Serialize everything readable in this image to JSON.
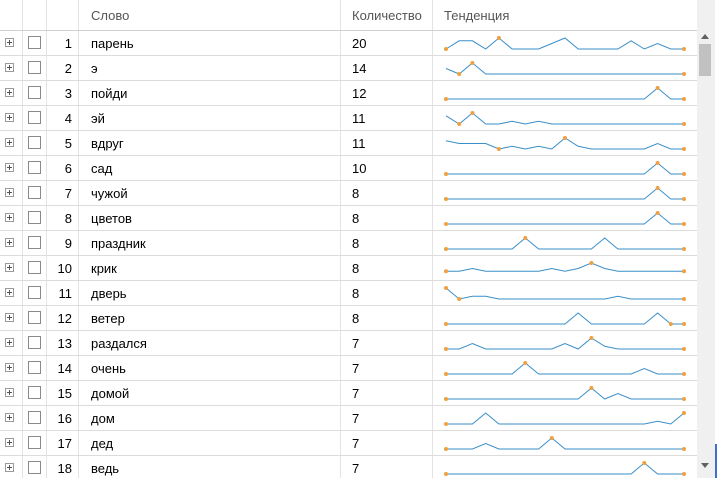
{
  "columns": {
    "word": "Слово",
    "count": "Количество",
    "trend": "Тенденция"
  },
  "colors": {
    "line": "#3a8fc8",
    "marker": "#f0a040",
    "grid_border": "#dcdcdc"
  },
  "rows": [
    {
      "num": "1",
      "word": "парень",
      "count": "20",
      "trend": [
        0,
        3,
        3,
        0,
        4,
        0,
        0,
        0,
        2,
        4,
        0,
        0,
        0,
        0,
        3,
        0,
        2,
        0,
        0
      ],
      "markers": [
        0,
        4,
        18
      ]
    },
    {
      "num": "2",
      "word": "э",
      "count": "14",
      "trend": [
        2,
        0,
        4,
        0,
        0,
        0,
        0,
        0,
        0,
        0,
        0,
        0,
        0,
        0,
        0,
        0,
        0,
        0,
        0
      ],
      "markers": [
        1,
        2,
        18
      ]
    },
    {
      "num": "3",
      "word": "пойди",
      "count": "12",
      "trend": [
        0,
        0,
        0,
        0,
        0,
        0,
        0,
        0,
        0,
        0,
        0,
        0,
        0,
        0,
        0,
        0,
        4,
        0,
        0
      ],
      "markers": [
        0,
        16,
        18
      ]
    },
    {
      "num": "4",
      "word": "эй",
      "count": "11",
      "trend": [
        3,
        0,
        4,
        0,
        0,
        1,
        0,
        1,
        0,
        0,
        0,
        0,
        0,
        0,
        0,
        0,
        0,
        0,
        0
      ],
      "markers": [
        1,
        2,
        18
      ]
    },
    {
      "num": "5",
      "word": "вдруг",
      "count": "11",
      "trend": [
        3,
        2,
        2,
        2,
        0,
        1,
        0,
        1,
        0,
        4,
        1,
        0,
        0,
        0,
        0,
        0,
        2,
        0,
        0
      ],
      "markers": [
        4,
        9,
        18
      ]
    },
    {
      "num": "6",
      "word": "сад",
      "count": "10",
      "trend": [
        0,
        0,
        0,
        0,
        0,
        0,
        0,
        0,
        0,
        0,
        0,
        0,
        0,
        0,
        0,
        0,
        4,
        0,
        0
      ],
      "markers": [
        0,
        16,
        18
      ]
    },
    {
      "num": "7",
      "word": "чужой",
      "count": "8",
      "trend": [
        0,
        0,
        0,
        0,
        0,
        0,
        0,
        0,
        0,
        0,
        0,
        0,
        0,
        0,
        0,
        0,
        4,
        0,
        0
      ],
      "markers": [
        0,
        16,
        18
      ]
    },
    {
      "num": "8",
      "word": "цветов",
      "count": "8",
      "trend": [
        0,
        0,
        0,
        0,
        0,
        0,
        0,
        0,
        0,
        0,
        0,
        0,
        0,
        0,
        0,
        0,
        4,
        0,
        0
      ],
      "markers": [
        0,
        16,
        18
      ]
    },
    {
      "num": "9",
      "word": "праздник",
      "count": "8",
      "trend": [
        0,
        0,
        0,
        0,
        0,
        0,
        4,
        0,
        0,
        0,
        0,
        0,
        4,
        0,
        0,
        0,
        0,
        0,
        0
      ],
      "markers": [
        0,
        6,
        18
      ]
    },
    {
      "num": "10",
      "word": "крик",
      "count": "8",
      "trend": [
        1,
        1,
        2,
        1,
        1,
        1,
        1,
        1,
        2,
        1,
        2,
        4,
        2,
        1,
        1,
        1,
        1,
        1,
        1
      ],
      "markers": [
        0,
        11,
        18
      ]
    },
    {
      "num": "11",
      "word": "дверь",
      "count": "8",
      "trend": [
        4,
        0,
        1,
        1,
        0,
        0,
        0,
        0,
        0,
        0,
        0,
        0,
        0,
        1,
        0,
        0,
        0,
        0,
        0
      ],
      "markers": [
        0,
        1,
        18
      ]
    },
    {
      "num": "12",
      "word": "ветер",
      "count": "8",
      "trend": [
        0,
        0,
        0,
        0,
        0,
        0,
        0,
        0,
        0,
        0,
        4,
        0,
        0,
        0,
        0,
        0,
        4,
        0,
        0
      ],
      "markers": [
        0,
        17,
        18
      ]
    },
    {
      "num": "13",
      "word": "раздался",
      "count": "7",
      "trend": [
        0,
        0,
        2,
        0,
        0,
        0,
        0,
        0,
        0,
        2,
        0,
        4,
        1,
        0,
        0,
        0,
        0,
        0,
        0
      ],
      "markers": [
        0,
        11,
        18
      ]
    },
    {
      "num": "14",
      "word": "очень",
      "count": "7",
      "trend": [
        0,
        0,
        0,
        0,
        0,
        0,
        4,
        0,
        0,
        0,
        0,
        0,
        0,
        0,
        0,
        2,
        0,
        0,
        0
      ],
      "markers": [
        0,
        6,
        18
      ]
    },
    {
      "num": "15",
      "word": "домой",
      "count": "7",
      "trend": [
        0,
        0,
        0,
        0,
        0,
        0,
        0,
        0,
        0,
        0,
        0,
        4,
        0,
        2,
        0,
        0,
        0,
        0,
        0
      ],
      "markers": [
        0,
        11,
        18
      ]
    },
    {
      "num": "16",
      "word": "дом",
      "count": "7",
      "trend": [
        0,
        0,
        0,
        4,
        0,
        0,
        0,
        0,
        0,
        0,
        0,
        0,
        0,
        0,
        0,
        0,
        1,
        0,
        4
      ],
      "markers": [
        0,
        18
      ]
    },
    {
      "num": "17",
      "word": "дед",
      "count": "7",
      "trend": [
        0,
        0,
        0,
        2,
        0,
        0,
        0,
        0,
        4,
        0,
        0,
        0,
        0,
        0,
        0,
        0,
        0,
        0,
        0
      ],
      "markers": [
        0,
        8,
        18
      ]
    },
    {
      "num": "18",
      "word": "ведь",
      "count": "7",
      "trend": [
        0,
        0,
        0,
        0,
        0,
        0,
        0,
        0,
        0,
        0,
        0,
        0,
        0,
        0,
        0,
        4,
        0,
        0,
        0
      ],
      "markers": [
        0,
        15,
        18
      ]
    }
  ]
}
